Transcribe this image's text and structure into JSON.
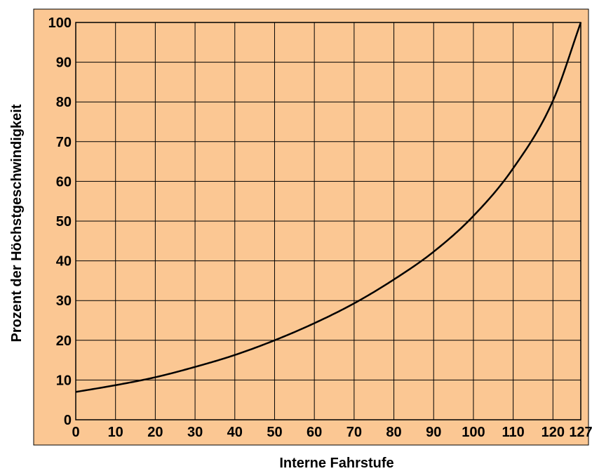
{
  "chart_data": {
    "type": "line",
    "xlabel": "Interne Fahrstufe",
    "ylabel": "Prozent der Höchstgeschwindigkeit",
    "xlim": [
      0,
      127
    ],
    "ylim": [
      0,
      100
    ],
    "x_ticks": [
      0,
      10,
      20,
      30,
      40,
      50,
      60,
      70,
      80,
      90,
      100,
      110,
      120,
      127
    ],
    "y_ticks": [
      0,
      10,
      20,
      30,
      40,
      50,
      60,
      70,
      80,
      90,
      100
    ],
    "x_tick_labels": [
      "0",
      "10",
      "20",
      "30",
      "40",
      "50",
      "60",
      "70",
      "80",
      "90",
      "100",
      "110",
      "120",
      "127"
    ],
    "y_tick_labels": [
      "0",
      "10",
      "20",
      "30",
      "40",
      "50",
      "60",
      "70",
      "80",
      "90",
      "100"
    ],
    "grid": true,
    "background_color": "#FBC793",
    "line_color": "#000000",
    "series": [
      {
        "x": [
          0,
          10,
          20,
          30,
          40,
          50,
          60,
          70,
          80,
          90,
          100,
          110,
          120,
          127
        ],
        "y": [
          7,
          8.7,
          10.7,
          13.3,
          16.3,
          20,
          24.3,
          29.3,
          35.3,
          42.3,
          51.3,
          63.3,
          80.3,
          100
        ]
      }
    ]
  }
}
